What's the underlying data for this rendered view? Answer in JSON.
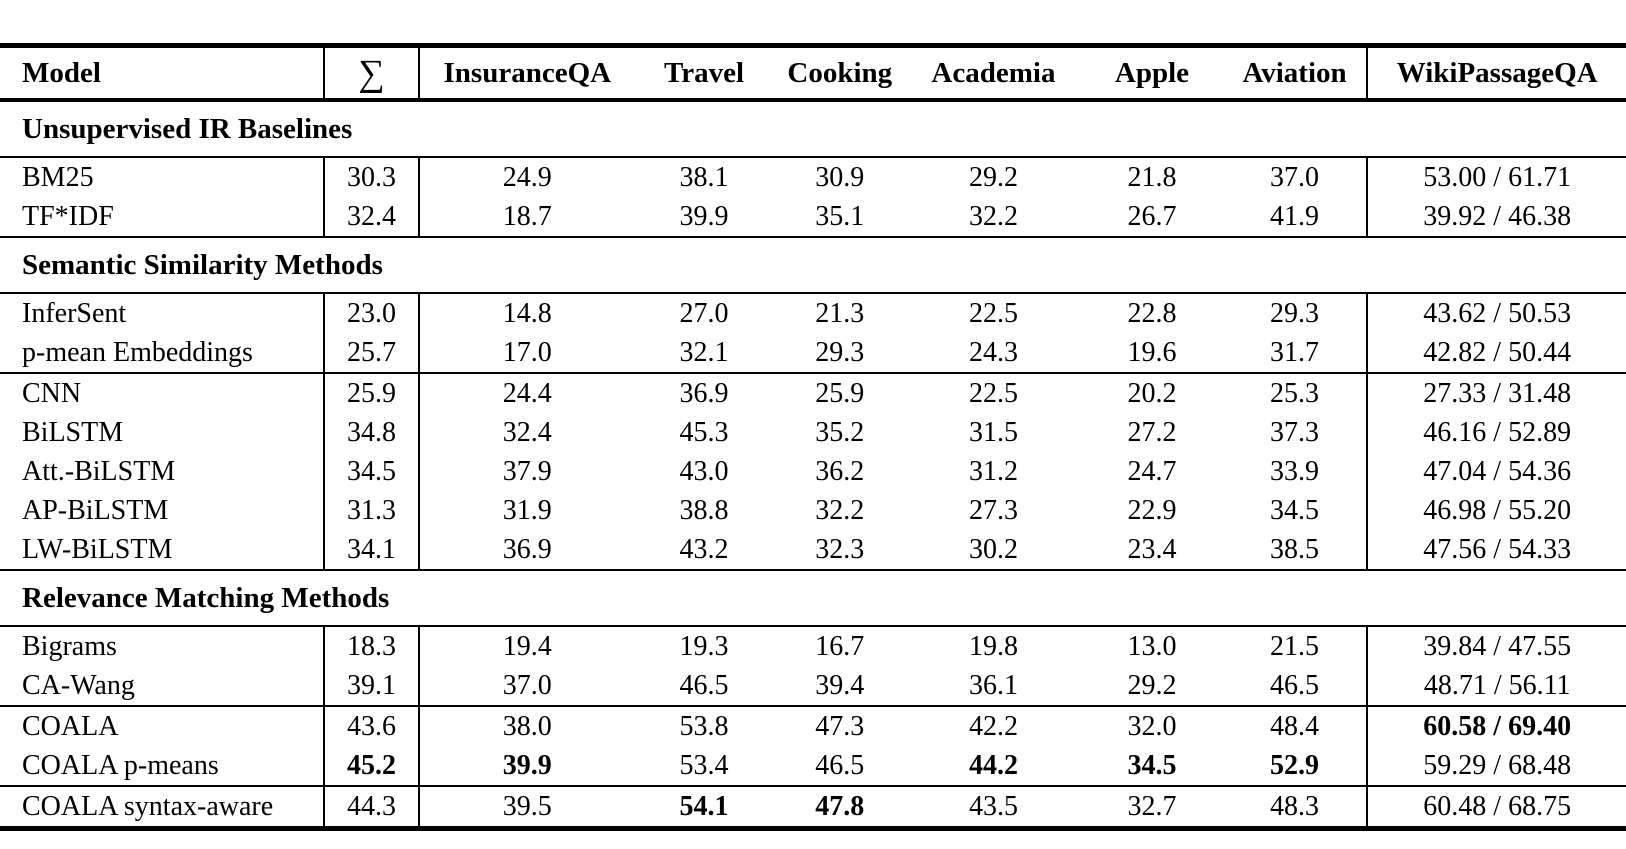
{
  "table": {
    "columns": [
      {
        "label": "Model"
      },
      {
        "label": "∑"
      },
      {
        "label": "InsuranceQA"
      },
      {
        "label": "Travel"
      },
      {
        "label": "Cooking"
      },
      {
        "label": "Academia"
      },
      {
        "label": "Apple"
      },
      {
        "label": "Aviation"
      },
      {
        "label": "WikiPassageQA"
      }
    ],
    "sections": [
      {
        "title": "Unsupervised IR Baselines",
        "groups": [
          {
            "rows": [
              {
                "model": "BM25",
                "values": [
                  "30.3",
                  "24.9",
                  "38.1",
                  "30.9",
                  "29.2",
                  "21.8",
                  "37.0",
                  "53.00 / 61.71"
                ],
                "bold": []
              },
              {
                "model": "TF*IDF",
                "values": [
                  "32.4",
                  "18.7",
                  "39.9",
                  "35.1",
                  "32.2",
                  "26.7",
                  "41.9",
                  "39.92 / 46.38"
                ],
                "bold": []
              }
            ]
          }
        ]
      },
      {
        "title": "Semantic Similarity Methods",
        "groups": [
          {
            "rows": [
              {
                "model": "InferSent",
                "values": [
                  "23.0",
                  "14.8",
                  "27.0",
                  "21.3",
                  "22.5",
                  "22.8",
                  "29.3",
                  "43.62 / 50.53"
                ],
                "bold": []
              },
              {
                "model": "p-mean Embeddings",
                "values": [
                  "25.7",
                  "17.0",
                  "32.1",
                  "29.3",
                  "24.3",
                  "19.6",
                  "31.7",
                  "42.82 / 50.44"
                ],
                "bold": []
              }
            ]
          },
          {
            "rows": [
              {
                "model": "CNN",
                "values": [
                  "25.9",
                  "24.4",
                  "36.9",
                  "25.9",
                  "22.5",
                  "20.2",
                  "25.3",
                  "27.33 / 31.48"
                ],
                "bold": []
              },
              {
                "model": "BiLSTM",
                "values": [
                  "34.8",
                  "32.4",
                  "45.3",
                  "35.2",
                  "31.5",
                  "27.2",
                  "37.3",
                  "46.16 / 52.89"
                ],
                "bold": []
              },
              {
                "model": "Att.-BiLSTM",
                "values": [
                  "34.5",
                  "37.9",
                  "43.0",
                  "36.2",
                  "31.2",
                  "24.7",
                  "33.9",
                  "47.04 / 54.36"
                ],
                "bold": []
              },
              {
                "model": "AP-BiLSTM",
                "values": [
                  "31.3",
                  "31.9",
                  "38.8",
                  "32.2",
                  "27.3",
                  "22.9",
                  "34.5",
                  "46.98 / 55.20"
                ],
                "bold": []
              },
              {
                "model": "LW-BiLSTM",
                "values": [
                  "34.1",
                  "36.9",
                  "43.2",
                  "32.3",
                  "30.2",
                  "23.4",
                  "38.5",
                  "47.56 / 54.33"
                ],
                "bold": []
              }
            ]
          }
        ]
      },
      {
        "title": "Relevance Matching Methods",
        "groups": [
          {
            "rows": [
              {
                "model": "Bigrams",
                "values": [
                  "18.3",
                  "19.4",
                  "19.3",
                  "16.7",
                  "19.8",
                  "13.0",
                  "21.5",
                  "39.84 / 47.55"
                ],
                "bold": []
              },
              {
                "model": "CA-Wang",
                "values": [
                  "39.1",
                  "37.0",
                  "46.5",
                  "39.4",
                  "36.1",
                  "29.2",
                  "46.5",
                  "48.71 / 56.11"
                ],
                "bold": []
              }
            ]
          },
          {
            "rows": [
              {
                "model": "COALA",
                "values": [
                  "43.6",
                  "38.0",
                  "53.8",
                  "47.3",
                  "42.2",
                  "32.0",
                  "48.4",
                  "60.58 / 69.40"
                ],
                "bold": [
                  7
                ]
              },
              {
                "model": "COALA p-means",
                "values": [
                  "45.2",
                  "39.9",
                  "53.4",
                  "46.5",
                  "44.2",
                  "34.5",
                  "52.9",
                  "59.29 / 68.48"
                ],
                "bold": [
                  0,
                  1,
                  4,
                  5,
                  6
                ]
              }
            ]
          },
          {
            "rows": [
              {
                "model": "COALA syntax-aware",
                "values": [
                  "44.3",
                  "39.5",
                  "54.1",
                  "47.8",
                  "43.5",
                  "32.7",
                  "48.3",
                  "60.48 / 68.75"
                ],
                "bold": [
                  2,
                  3
                ]
              }
            ]
          }
        ]
      }
    ]
  }
}
